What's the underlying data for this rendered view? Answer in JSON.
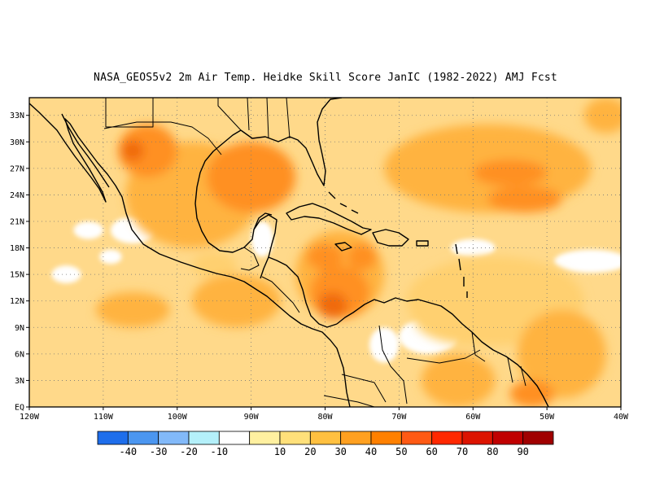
{
  "title": "NASA_GEOS5v2  2m Air Temp. Heidke Skill Score JanIC (1982-2022) AMJ Fcst",
  "map": {
    "lon_range": [
      -120,
      -40
    ],
    "lat_range": [
      0,
      35
    ],
    "x_ticks": [
      {
        "lon": -120,
        "label": "120W"
      },
      {
        "lon": -110,
        "label": "110W"
      },
      {
        "lon": -100,
        "label": "100W"
      },
      {
        "lon": -90,
        "label": "90W"
      },
      {
        "lon": -80,
        "label": "80W"
      },
      {
        "lon": -70,
        "label": "70W"
      },
      {
        "lon": -60,
        "label": "60W"
      },
      {
        "lon": -50,
        "label": "50W"
      },
      {
        "lon": -40,
        "label": "40W"
      }
    ],
    "y_ticks": [
      {
        "lat": 0,
        "label": "EQ"
      },
      {
        "lat": 3,
        "label": "3N"
      },
      {
        "lat": 6,
        "label": "6N"
      },
      {
        "lat": 9,
        "label": "9N"
      },
      {
        "lat": 12,
        "label": "12N"
      },
      {
        "lat": 15,
        "label": "15N"
      },
      {
        "lat": 18,
        "label": "18N"
      },
      {
        "lat": 21,
        "label": "21N"
      },
      {
        "lat": 24,
        "label": "24N"
      },
      {
        "lat": 27,
        "label": "27N"
      },
      {
        "lat": 30,
        "label": "30N"
      },
      {
        "lat": 33,
        "label": "33N"
      }
    ],
    "skill_regions": [
      {
        "lon": -98,
        "lat": 24,
        "rx": 9,
        "ry": 6,
        "level": 40
      },
      {
        "lon": -90,
        "lat": 26,
        "rx": 6,
        "ry": 4,
        "level": 50
      },
      {
        "lon": -104,
        "lat": 29,
        "rx": 4,
        "ry": 3,
        "level": 50
      },
      {
        "lon": -106,
        "lat": 29,
        "rx": 1.5,
        "ry": 1.2,
        "level": 60
      },
      {
        "lon": -78,
        "lat": 15,
        "rx": 6,
        "ry": 5,
        "level": 40
      },
      {
        "lon": -78,
        "lat": 13,
        "rx": 4,
        "ry": 3,
        "level": 50
      },
      {
        "lon": -79,
        "lat": 11.5,
        "rx": 2,
        "ry": 1.5,
        "level": 60
      },
      {
        "lon": -80,
        "lat": 17,
        "rx": 2.5,
        "ry": 1.5,
        "level": 50
      },
      {
        "lon": -75,
        "lat": 17,
        "rx": 2,
        "ry": 1.5,
        "level": 50
      },
      {
        "lon": -58,
        "lat": 27,
        "rx": 14,
        "ry": 5,
        "level": 40
      },
      {
        "lon": -55,
        "lat": 26.5,
        "rx": 5,
        "ry": 1.5,
        "level": 50
      },
      {
        "lon": -53,
        "lat": 23.5,
        "rx": 5,
        "ry": 1.5,
        "level": 50
      },
      {
        "lon": -92,
        "lat": 12,
        "rx": 6,
        "ry": 3,
        "level": 40
      },
      {
        "lon": -106,
        "lat": 11,
        "rx": 5,
        "ry": 2,
        "level": 40
      },
      {
        "lon": -103,
        "lat": 24,
        "rx": 4,
        "ry": 3,
        "level": 40
      },
      {
        "lon": -62,
        "lat": 3,
        "rx": 5,
        "ry": 3,
        "level": 40
      },
      {
        "lon": -48,
        "lat": 6,
        "rx": 6,
        "ry": 5,
        "level": 40
      },
      {
        "lon": -52,
        "lat": 1.5,
        "rx": 3,
        "ry": 1.5,
        "level": 50
      },
      {
        "lon": -42,
        "lat": 33,
        "rx": 3,
        "ry": 2,
        "level": 40
      },
      {
        "lon": -57,
        "lat": 12,
        "rx": 12,
        "ry": 5,
        "level": 30
      },
      {
        "lon": -60,
        "lat": 10,
        "rx": 8,
        "ry": 3,
        "level": 30
      },
      {
        "lon": -95,
        "lat": 16,
        "rx": 3,
        "ry": 1.5,
        "level": 30
      }
    ],
    "low_skill_regions": [
      {
        "lon": -106,
        "lat": 20,
        "rx": 3,
        "ry": 1.5
      },
      {
        "lon": -112,
        "lat": 20,
        "rx": 2,
        "ry": 1
      },
      {
        "lon": -88.5,
        "lat": 19,
        "rx": 1.5,
        "ry": 2
      },
      {
        "lon": -66,
        "lat": 8,
        "rx": 4,
        "ry": 2
      },
      {
        "lon": -72,
        "lat": 7,
        "rx": 2,
        "ry": 2
      },
      {
        "lon": -44,
        "lat": 16.5,
        "rx": 5,
        "ry": 1.3
      },
      {
        "lon": -60,
        "lat": 18,
        "rx": 3,
        "ry": 1
      },
      {
        "lon": -115,
        "lat": 15,
        "rx": 2,
        "ry": 1
      },
      {
        "lon": -109,
        "lat": 17,
        "rx": 1.5,
        "ry": 0.8
      }
    ]
  },
  "colorbar": {
    "colors": [
      "#1e6eeb",
      "#4b96f0",
      "#82b9f9",
      "#b4f0fa",
      "#ffffff",
      "#fff0a0",
      "#ffe07a",
      "#ffc040",
      "#ffa020",
      "#ff8000",
      "#ff5a14",
      "#ff2800",
      "#dc1400",
      "#c00000",
      "#a00000"
    ],
    "labels": [
      "-40",
      "-30",
      "-20",
      "-10",
      "10",
      "20",
      "30",
      "40",
      "50",
      "60",
      "70",
      "80",
      "90"
    ]
  },
  "level_colors": {
    "20": "#ffe8a0",
    "30": "#ffd070",
    "40": "#ffb340",
    "50": "#ff9020",
    "60": "#f06a10",
    "base": "#ffd98a"
  }
}
